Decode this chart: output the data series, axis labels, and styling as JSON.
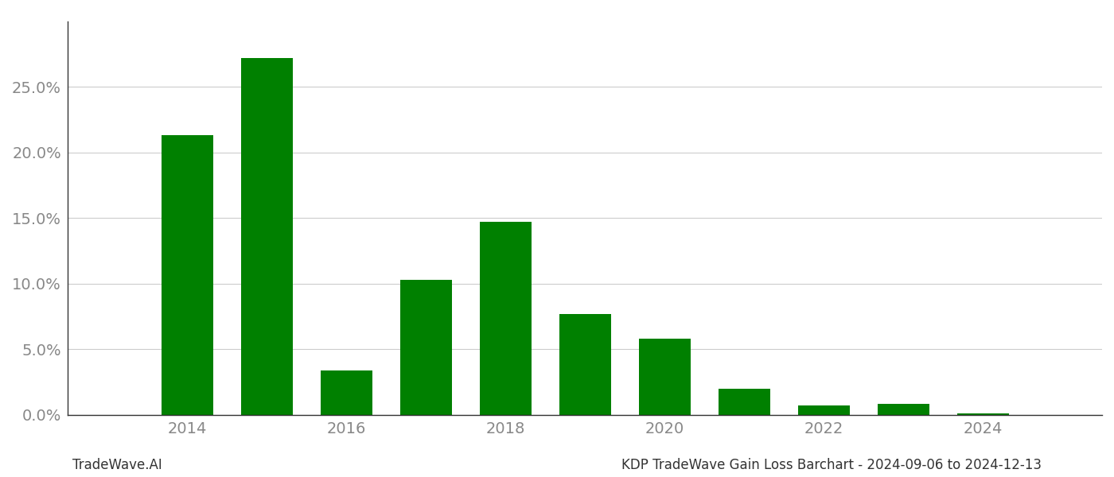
{
  "years": [
    2013,
    2014,
    2015,
    2016,
    2017,
    2018,
    2019,
    2020,
    2021,
    2022,
    2023,
    2024
  ],
  "values": [
    0.0,
    0.213,
    0.272,
    0.034,
    0.103,
    0.147,
    0.077,
    0.058,
    0.02,
    0.007,
    0.008,
    0.001
  ],
  "bar_color": "#008000",
  "background_color": "#ffffff",
  "grid_color": "#cccccc",
  "ylim": [
    0,
    0.3
  ],
  "yticks": [
    0.0,
    0.05,
    0.1,
    0.15,
    0.2,
    0.25
  ],
  "xtick_labels": [
    "2014",
    "2016",
    "2018",
    "2020",
    "2022",
    "2024"
  ],
  "xtick_positions": [
    2014,
    2016,
    2018,
    2020,
    2022,
    2024
  ],
  "footer_left": "TradeWave.AI",
  "footer_right": "KDP TradeWave Gain Loss Barchart - 2024-09-06 to 2024-12-13",
  "tick_fontsize": 14,
  "footer_fontsize": 12
}
